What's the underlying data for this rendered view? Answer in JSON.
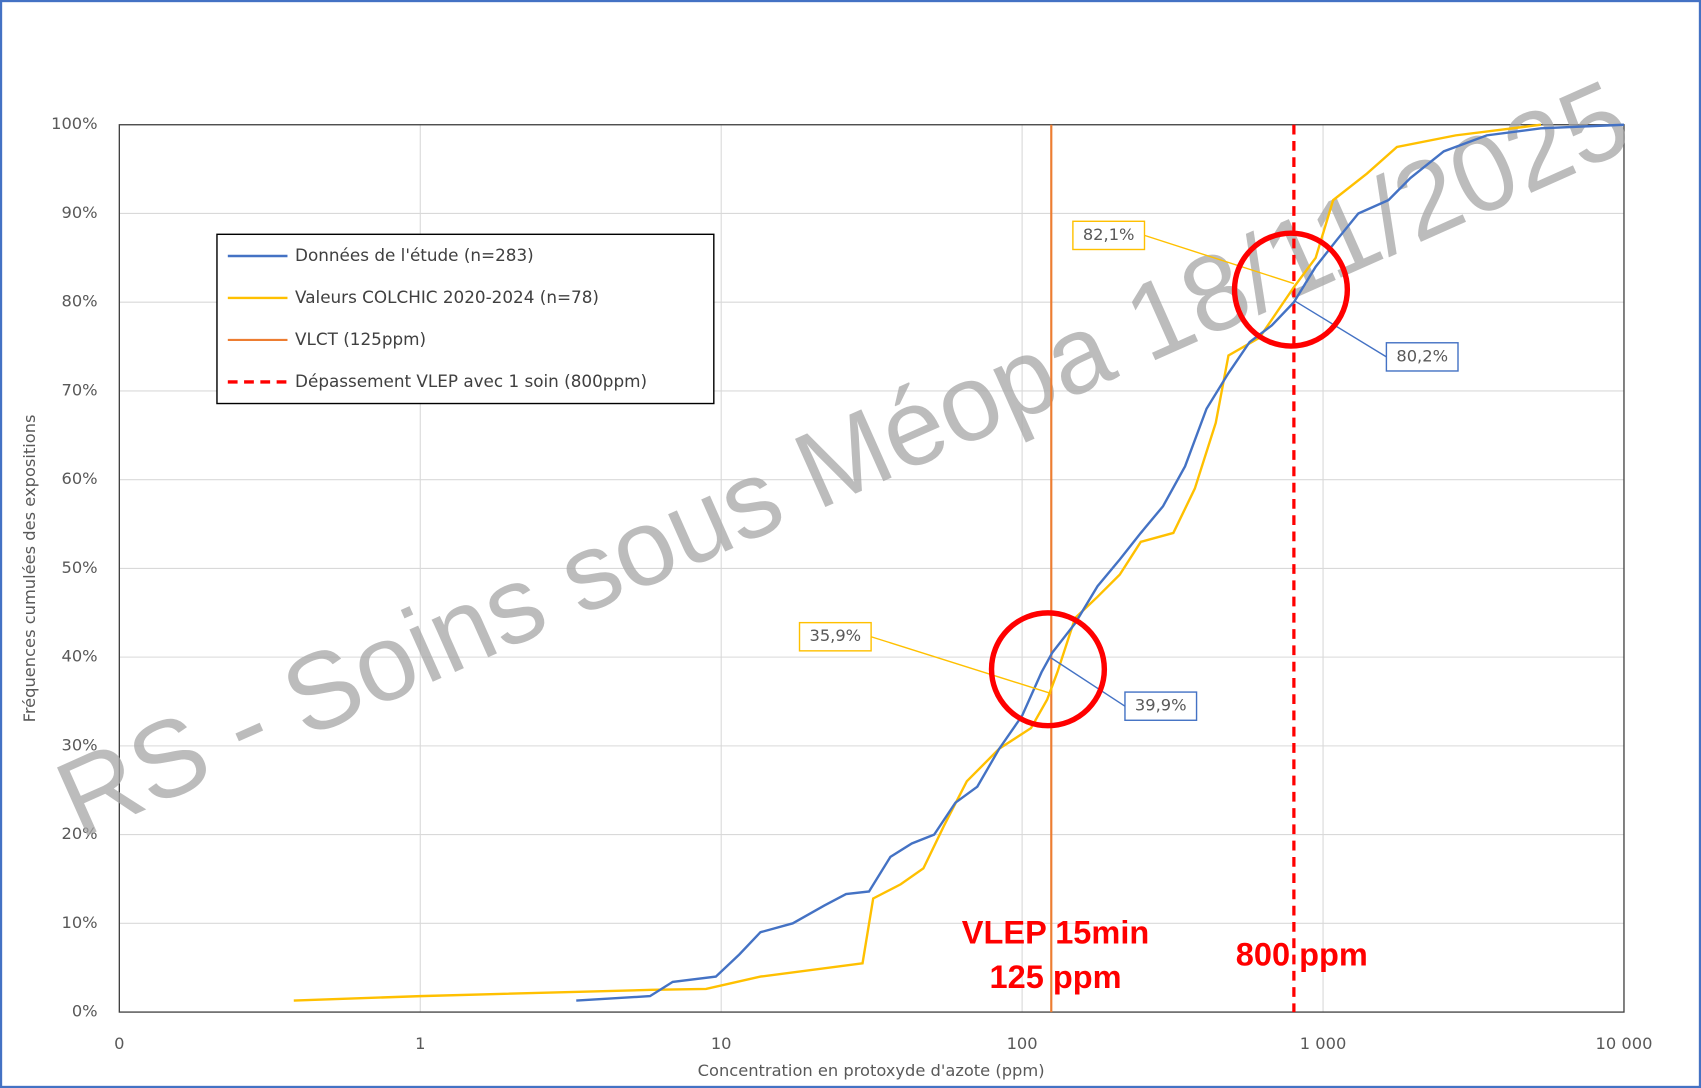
{
  "chart_data": {
    "type": "line",
    "watermark": "RS - Soins sous Méopa 18/11/2025",
    "ylabel": "Fréquences cumulées des expositions",
    "xlabel": "Concentration en protoxyde d'azote (ppm)",
    "xscale": "log",
    "grid": true,
    "xlim": [
      0.1,
      10000
    ],
    "ylim": [
      0,
      100
    ],
    "xticks": [
      {
        "value": 0.1,
        "label": "0"
      },
      1,
      10,
      100,
      {
        "value": 1000,
        "label": "1 000"
      },
      {
        "value": 10000,
        "label": "10 000"
      }
    ],
    "yticks": [
      {
        "value": 0,
        "label": "0%"
      },
      {
        "value": 10,
        "label": "10%"
      },
      {
        "value": 20,
        "label": "20%"
      },
      {
        "value": 30,
        "label": "30%"
      },
      {
        "value": 40,
        "label": "40%"
      },
      {
        "value": 50,
        "label": "50%"
      },
      {
        "value": 60,
        "label": "60%"
      },
      {
        "value": 70,
        "label": "70%"
      },
      {
        "value": 80,
        "label": "80%"
      },
      {
        "value": 90,
        "label": "90%"
      },
      {
        "value": 100,
        "label": "100%"
      }
    ],
    "series": [
      {
        "name": "Données de l'étude (n=283)",
        "color": "#4472c4",
        "x": [
          3.3,
          5.8,
          6.9,
          9.6,
          11.5,
          13.5,
          17.3,
          22,
          26,
          31,
          36.5,
          43,
          51,
          60,
          71,
          84,
          100,
          116,
          126,
          150,
          178,
          211,
          248,
          294,
          348,
          410,
          485,
          570,
          676,
          800,
          945,
          1110,
          1310,
          1650,
          1950,
          2520,
          3500,
          5300,
          10000
        ],
        "values": [
          1.3,
          1.8,
          3.4,
          4,
          6.5,
          9,
          10,
          12,
          13.3,
          13.6,
          17.5,
          19,
          20,
          23.6,
          25.4,
          29.7,
          33.4,
          38.3,
          40.5,
          43.8,
          48,
          51,
          54,
          57,
          61.5,
          68,
          72,
          75.5,
          77.4,
          80,
          84,
          87,
          90,
          91.5,
          94,
          97,
          98.8,
          99.6,
          100
        ]
      },
      {
        "name": "Valeurs COLCHIC 2020-2024 (n=78)",
        "color": "#ffc000",
        "x": [
          0.38,
          1,
          5.9,
          8.9,
          13.5,
          29.5,
          32,
          39.5,
          47,
          55,
          65.5,
          84,
          107,
          121,
          131,
          150,
          178,
          211,
          248,
          318,
          375,
          440,
          485,
          615,
          800,
          945,
          1080,
          1400,
          1760,
          2760,
          5300
        ],
        "values": [
          1.3,
          1.8,
          2.5,
          2.6,
          4,
          5.5,
          12.8,
          14.4,
          16.2,
          21,
          26,
          29.7,
          32,
          35.2,
          38.3,
          44.4,
          46.8,
          49.3,
          53,
          54,
          59,
          66.4,
          74,
          76,
          81.7,
          85,
          91.5,
          94.5,
          97.5,
          98.8,
          100
        ]
      }
    ],
    "reference_lines": [
      {
        "name": "VLCT (125ppm)",
        "value": 125,
        "color": "#ed7d31",
        "dashed": false
      },
      {
        "name": "Dépassement VLEP avec 1 soin (800ppm)",
        "value": 800,
        "color": "#ff0000",
        "dashed": true
      }
    ],
    "annotations": [
      {
        "label": "82,1%",
        "value": 82.1,
        "x": 800,
        "color": "#ffc000"
      },
      {
        "label": "80,2%",
        "value": 80.2,
        "x": 800,
        "color": "#4472c4"
      },
      {
        "label": "35,9%",
        "value": 35.9,
        "x": 125,
        "color": "#ffc000"
      },
      {
        "label": "39,9%",
        "value": 39.9,
        "x": 125,
        "color": "#4472c4"
      }
    ],
    "notes": [
      "VLEP 15min",
      "125 ppm",
      "800 ppm"
    ],
    "note_color": "#ff0000"
  }
}
